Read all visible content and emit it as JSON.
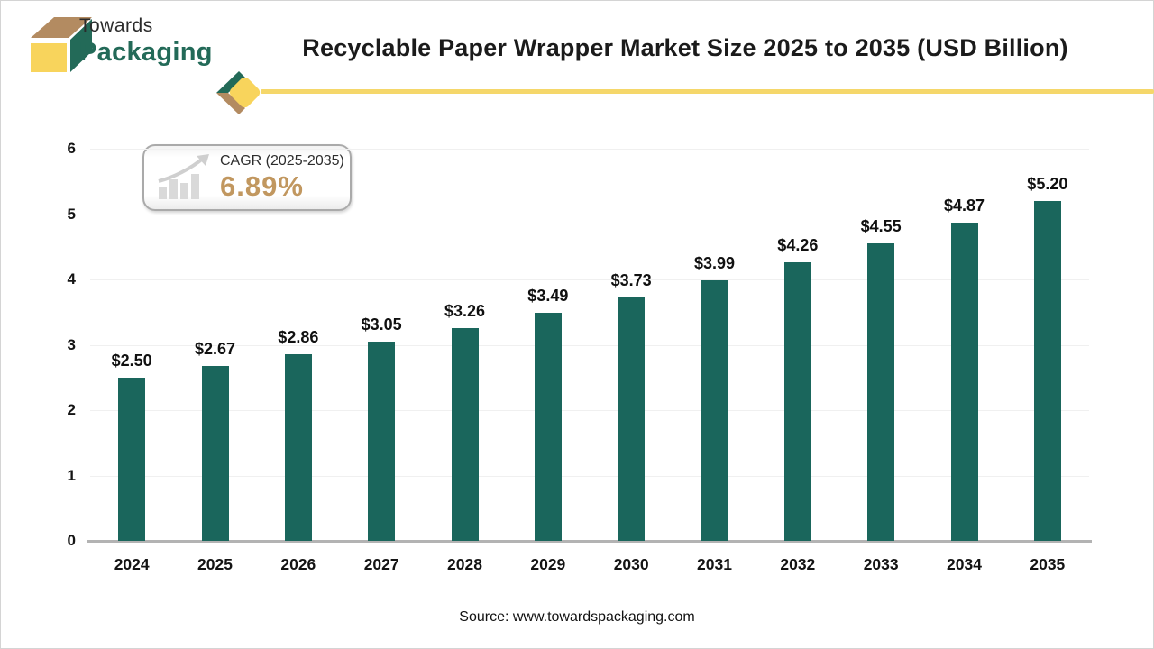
{
  "header": {
    "logo": {
      "line1": "Towards",
      "line2": "Packaging"
    },
    "title": "Recyclable Paper Wrapper Market Size 2025 to 2035 (USD Billion)"
  },
  "cagr_badge": {
    "label": "CAGR (2025-2035)",
    "value": "6.89%"
  },
  "chart_data": {
    "type": "bar",
    "title": "Recyclable Paper Wrapper Market Size 2025 to 2035 (USD Billion)",
    "categories": [
      "2024",
      "2025",
      "2026",
      "2027",
      "2028",
      "2029",
      "2030",
      "2031",
      "2032",
      "2033",
      "2034",
      "2035"
    ],
    "values": [
      2.5,
      2.67,
      2.86,
      3.05,
      3.26,
      3.49,
      3.73,
      3.99,
      4.26,
      4.55,
      4.87,
      5.2
    ],
    "value_labels": [
      "$2.50",
      "$2.67",
      "$2.86",
      "$3.05",
      "$3.26",
      "$3.49",
      "$3.73",
      "$3.99",
      "$4.26",
      "$4.55",
      "$4.87",
      "$5.20"
    ],
    "value_prefix": "$",
    "unit": "USD Billion",
    "xlabel": "",
    "ylabel": "",
    "ylim": [
      0,
      6
    ],
    "yticks": [
      0,
      1,
      2,
      3,
      4,
      5,
      6
    ],
    "grid": true,
    "legend": "none",
    "bar_color": "#1a665c"
  },
  "footer": {
    "source": "Source: www.towardspackaging.com"
  },
  "colors": {
    "bar": "#1a665c",
    "logo_green": "#236a58",
    "logo_tan": "#b38b61",
    "logo_yellow": "#f8d45c",
    "divider_yellow": "#f5d76a",
    "cagr_value": "#c1975f",
    "grid": "#f0f0f0",
    "axis": "#b3b3b3"
  }
}
